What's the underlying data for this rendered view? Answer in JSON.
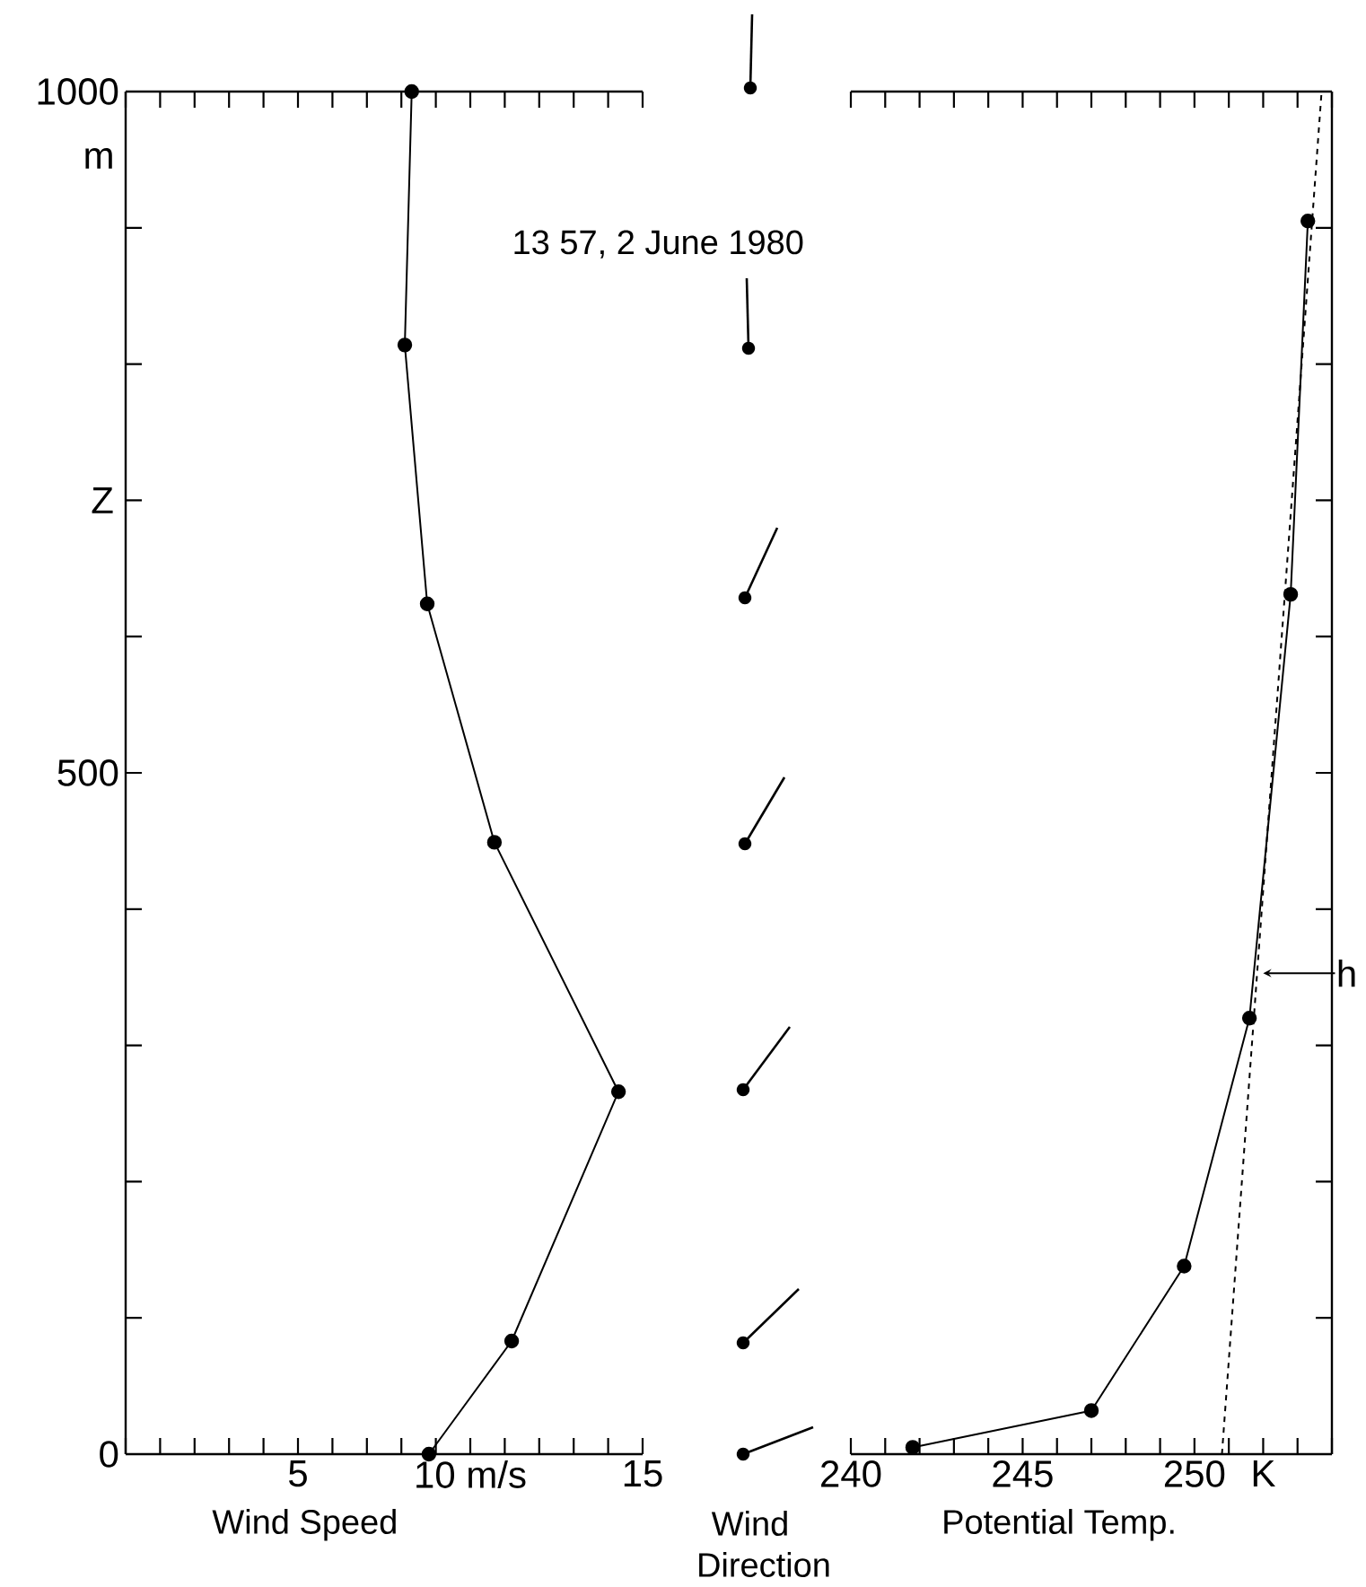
{
  "chart_data": [
    {
      "type": "line",
      "title": "13 57, 2 June 1980",
      "xlabel": "Wind Speed",
      "ylabel": "Z",
      "annotations": [
        "m"
      ],
      "marker": "circle",
      "line_style": "solid",
      "grid": false,
      "x": [
        8.3,
        8.1,
        8.75,
        10.7,
        14.3,
        11.2,
        8.8
      ],
      "values": [
        1000,
        814,
        624,
        449,
        266,
        83,
        0
      ],
      "xlim": [
        0,
        15
      ],
      "ylim": [
        0,
        1000
      ],
      "xticks": [
        {
          "value": 0,
          "label": null
        },
        {
          "value": 1,
          "label": null
        },
        {
          "value": 2,
          "label": null
        },
        {
          "value": 3,
          "label": null
        },
        {
          "value": 4,
          "label": null
        },
        5,
        {
          "value": 6,
          "label": null
        },
        {
          "value": 7,
          "label": null
        },
        {
          "value": 8,
          "label": null
        },
        {
          "value": 9,
          "label": null
        },
        {
          "value": 10,
          "label": "10 m/s"
        },
        {
          "value": 11,
          "label": null
        },
        {
          "value": 12,
          "label": null
        },
        {
          "value": 13,
          "label": null
        },
        {
          "value": 14,
          "label": null
        },
        15
      ],
      "yticks": [
        0,
        {
          "value": 100,
          "label": null
        },
        {
          "value": 200,
          "label": null
        },
        {
          "value": 300,
          "label": null
        },
        {
          "value": 400,
          "label": null
        },
        500,
        {
          "value": 600,
          "label": null
        },
        {
          "value": 700,
          "label": null
        },
        {
          "value": 800,
          "label": null
        },
        {
          "value": 900,
          "label": null
        },
        1000
      ]
    },
    {
      "type": "other",
      "xlabel": "Wind Direction"
    },
    {
      "type": "line",
      "xlabel": "Potential Temp.",
      "grid": false,
      "tick_labels": "x",
      "series": [
        {
          "x": [
            241.8,
            247.0,
            249.7,
            251.6,
            252.8,
            253.3
          ],
          "values": [
            5,
            32,
            138,
            320,
            631,
            905
          ],
          "marker": "circle",
          "line_style": "solid"
        },
        {
          "x": [
            250.8,
            253.7
          ],
          "values": [
            0,
            1000
          ],
          "marker": "none",
          "line_style": "dashed"
        }
      ],
      "annotations": [
        {
          "text": "h",
          "x": 252,
          "y": 353
        }
      ],
      "xlim": [
        240,
        254
      ],
      "ylim": [
        0,
        1000
      ],
      "xticks": [
        240,
        {
          "value": 241,
          "label": null
        },
        {
          "value": 242,
          "label": null
        },
        {
          "value": 243,
          "label": null
        },
        {
          "value": 244,
          "label": null
        },
        245,
        {
          "value": 246,
          "label": null
        },
        {
          "value": 247,
          "label": null
        },
        {
          "value": 248,
          "label": null
        },
        {
          "value": 249,
          "label": null
        },
        250,
        {
          "value": 251,
          "label": null
        },
        {
          "value": 252,
          "label": "K"
        },
        {
          "value": 253,
          "label": null
        },
        {
          "value": 254,
          "label": null
        }
      ],
      "yticks": [
        {
          "value": 0,
          "label": null
        },
        {
          "value": 100,
          "label": null
        },
        {
          "value": 200,
          "label": null
        },
        {
          "value": 300,
          "label": null
        },
        {
          "value": 400,
          "label": null
        },
        {
          "value": 500,
          "label": null
        },
        {
          "value": 600,
          "label": null
        },
        {
          "value": 700,
          "label": null
        },
        {
          "value": 800,
          "label": null
        },
        {
          "value": 900,
          "label": null
        },
        {
          "value": 1000,
          "label": null
        }
      ]
    }
  ]
}
